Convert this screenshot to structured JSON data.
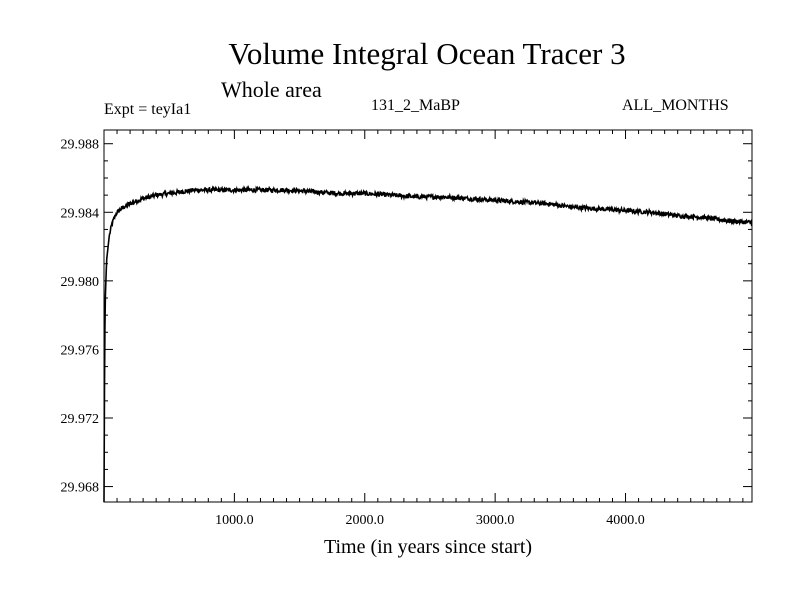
{
  "chart_data": {
    "type": "line",
    "title": "Volume Integral Ocean Tracer 3",
    "subtitle": "Whole area",
    "annotations": {
      "experiment": "Expt = teyIa1",
      "run": "131_2_MaBP",
      "months": "ALL_MONTHS"
    },
    "xlabel": "Time (in years since start)",
    "ylabel": "",
    "xlim": [
      0,
      4970
    ],
    "ylim": [
      29.9671,
      29.9888
    ],
    "x_ticks": [
      1000,
      2000,
      3000,
      4000
    ],
    "x_tick_labels": [
      "1000.0",
      "2000.0",
      "3000.0",
      "4000.0"
    ],
    "y_ticks": [
      29.968,
      29.972,
      29.976,
      29.98,
      29.984,
      29.988
    ],
    "y_tick_labels": [
      "29.968",
      "29.972",
      "29.976",
      "29.980",
      "29.984",
      "29.988"
    ],
    "grid": false,
    "color": "#000000",
    "series": [
      {
        "x": [
          0,
          5,
          10,
          20,
          40,
          60,
          80,
          100,
          150,
          200,
          300,
          400,
          500,
          600,
          700,
          800,
          1000,
          1200,
          1400,
          1600,
          1800,
          2000,
          2200,
          2400,
          2600,
          2800,
          3000,
          3200,
          3400,
          3600,
          3800,
          4000,
          4200,
          4400,
          4600,
          4800,
          4970
        ],
        "y": [
          29.9671,
          29.976,
          29.979,
          29.9812,
          29.9826,
          29.9833,
          29.9837,
          29.984,
          29.9843,
          29.9845,
          29.9848,
          29.985,
          29.9851,
          29.9852,
          29.9853,
          29.9853,
          29.9853,
          29.9853,
          29.9853,
          29.9852,
          29.9851,
          29.9851,
          29.985,
          29.9849,
          29.9849,
          29.9848,
          29.9847,
          29.9846,
          29.9845,
          29.9843,
          29.9842,
          29.9841,
          29.984,
          29.9838,
          29.9837,
          29.9835,
          29.9834
        ],
        "noise": 0.00013
      }
    ]
  }
}
